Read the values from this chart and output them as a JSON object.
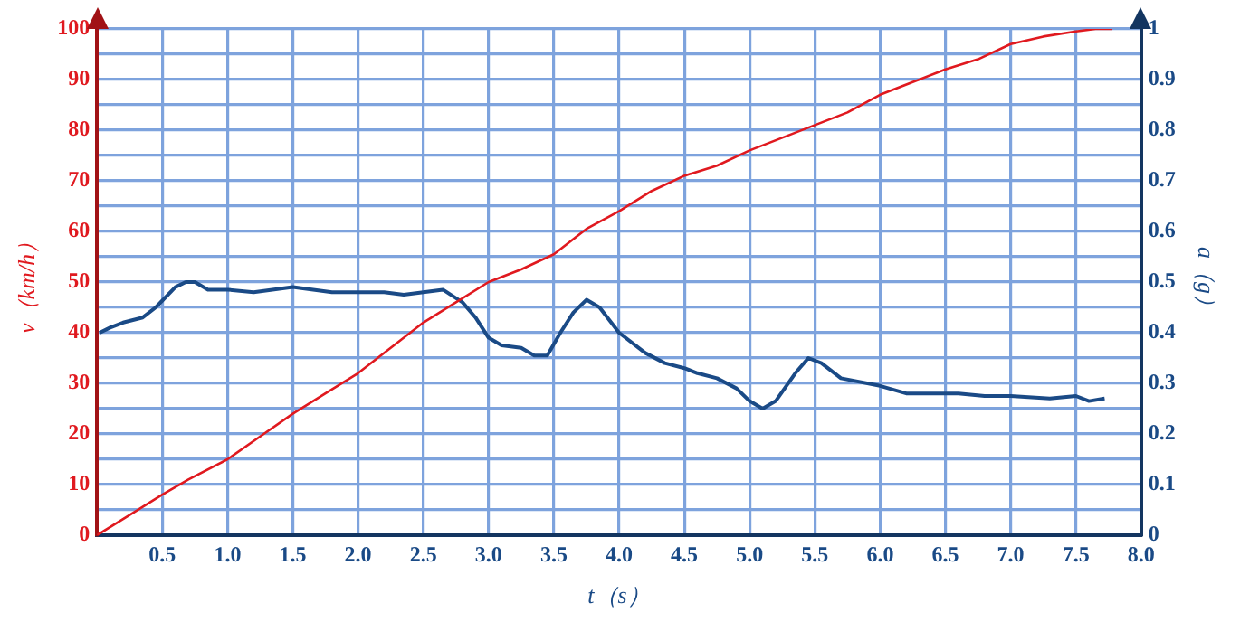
{
  "chart_data": {
    "type": "line",
    "xlabel": "t（s）",
    "ylabel": "v（km/h）",
    "y2label": "a（g）",
    "xlim": [
      0,
      8
    ],
    "xticks": [
      {
        "value": 0.5,
        "label": "0.5"
      },
      {
        "value": 1,
        "label": "1.0"
      },
      {
        "value": 1.5,
        "label": "1.5"
      },
      {
        "value": 2,
        "label": "2.0"
      },
      {
        "value": 2.5,
        "label": "2.5"
      },
      {
        "value": 3,
        "label": "3.0"
      },
      {
        "value": 3.5,
        "label": "3.5"
      },
      {
        "value": 4,
        "label": "4.0"
      },
      {
        "value": 4.5,
        "label": "4.5"
      },
      {
        "value": 5,
        "label": "5.0"
      },
      {
        "value": 5.5,
        "label": "5.5"
      },
      {
        "value": 6,
        "label": "6.0"
      },
      {
        "value": 6.5,
        "label": "6.5"
      },
      {
        "value": 7,
        "label": "7.0"
      },
      {
        "value": 7.5,
        "label": "7.5"
      },
      {
        "value": 8,
        "label": "8.0"
      }
    ],
    "ylim": [
      0,
      100
    ],
    "yticks": [
      0,
      {
        "value": 5,
        "label": null
      },
      10,
      {
        "value": 15,
        "label": null
      },
      20,
      {
        "value": 25,
        "label": null
      },
      30,
      {
        "value": 35,
        "label": null
      },
      40,
      {
        "value": 45,
        "label": null
      },
      50,
      {
        "value": 55,
        "label": null
      },
      60,
      {
        "value": 65,
        "label": null
      },
      70,
      {
        "value": 75,
        "label": null
      },
      80,
      {
        "value": 85,
        "label": null
      },
      90,
      {
        "value": 95,
        "label": null
      },
      100
    ],
    "y2lim": [
      0,
      1
    ],
    "y2ticks": [
      0,
      0.1,
      0.2,
      0.3,
      0.4,
      0.5,
      0.6,
      0.7,
      0.8,
      0.9,
      1
    ],
    "grid": true,
    "series": [
      {
        "color": "#e0191f",
        "x": [
          0,
          0.25,
          0.5,
          0.7,
          1.0,
          1.25,
          1.5,
          1.75,
          2.0,
          2.25,
          2.5,
          2.75,
          3.0,
          3.25,
          3.5,
          3.75,
          4.0,
          4.25,
          4.5,
          4.75,
          5.0,
          5.25,
          5.5,
          5.75,
          6.0,
          6.25,
          6.5,
          6.75,
          7.0,
          7.25,
          7.5,
          7.65,
          7.78
        ],
        "values": [
          0,
          4,
          8,
          11,
          15,
          19.5,
          24,
          28,
          32,
          37,
          42,
          46,
          50,
          52.5,
          55.5,
          60.5,
          64,
          68,
          71,
          73,
          76,
          78.5,
          81,
          83.5,
          87,
          89.5,
          92,
          94,
          97,
          98.5,
          99.5,
          100,
          100
        ]
      },
      {
        "color": "#1a4a86",
        "axis": "y2",
        "x": [
          0.02,
          0.1,
          0.2,
          0.35,
          0.45,
          0.6,
          0.68,
          0.75,
          0.85,
          1.0,
          1.2,
          1.5,
          1.8,
          2.0,
          2.2,
          2.35,
          2.5,
          2.65,
          2.8,
          2.9,
          3.0,
          3.1,
          3.25,
          3.35,
          3.45,
          3.55,
          3.65,
          3.75,
          3.85,
          4.0,
          4.2,
          4.35,
          4.5,
          4.6,
          4.75,
          4.9,
          5.0,
          5.1,
          5.2,
          5.35,
          5.45,
          5.55,
          5.7,
          6.0,
          6.2,
          6.4,
          6.6,
          6.8,
          7.0,
          7.3,
          7.5,
          7.6,
          7.72
        ],
        "values": [
          0.4,
          0.41,
          0.42,
          0.43,
          0.45,
          0.49,
          0.5,
          0.5,
          0.485,
          0.485,
          0.48,
          0.49,
          0.48,
          0.48,
          0.48,
          0.475,
          0.48,
          0.485,
          0.46,
          0.43,
          0.39,
          0.375,
          0.37,
          0.355,
          0.355,
          0.4,
          0.44,
          0.465,
          0.45,
          0.4,
          0.36,
          0.34,
          0.33,
          0.32,
          0.31,
          0.29,
          0.265,
          0.25,
          0.265,
          0.32,
          0.35,
          0.34,
          0.31,
          0.295,
          0.28,
          0.28,
          0.28,
          0.275,
          0.275,
          0.27,
          0.275,
          0.265,
          0.27
        ]
      }
    ]
  }
}
